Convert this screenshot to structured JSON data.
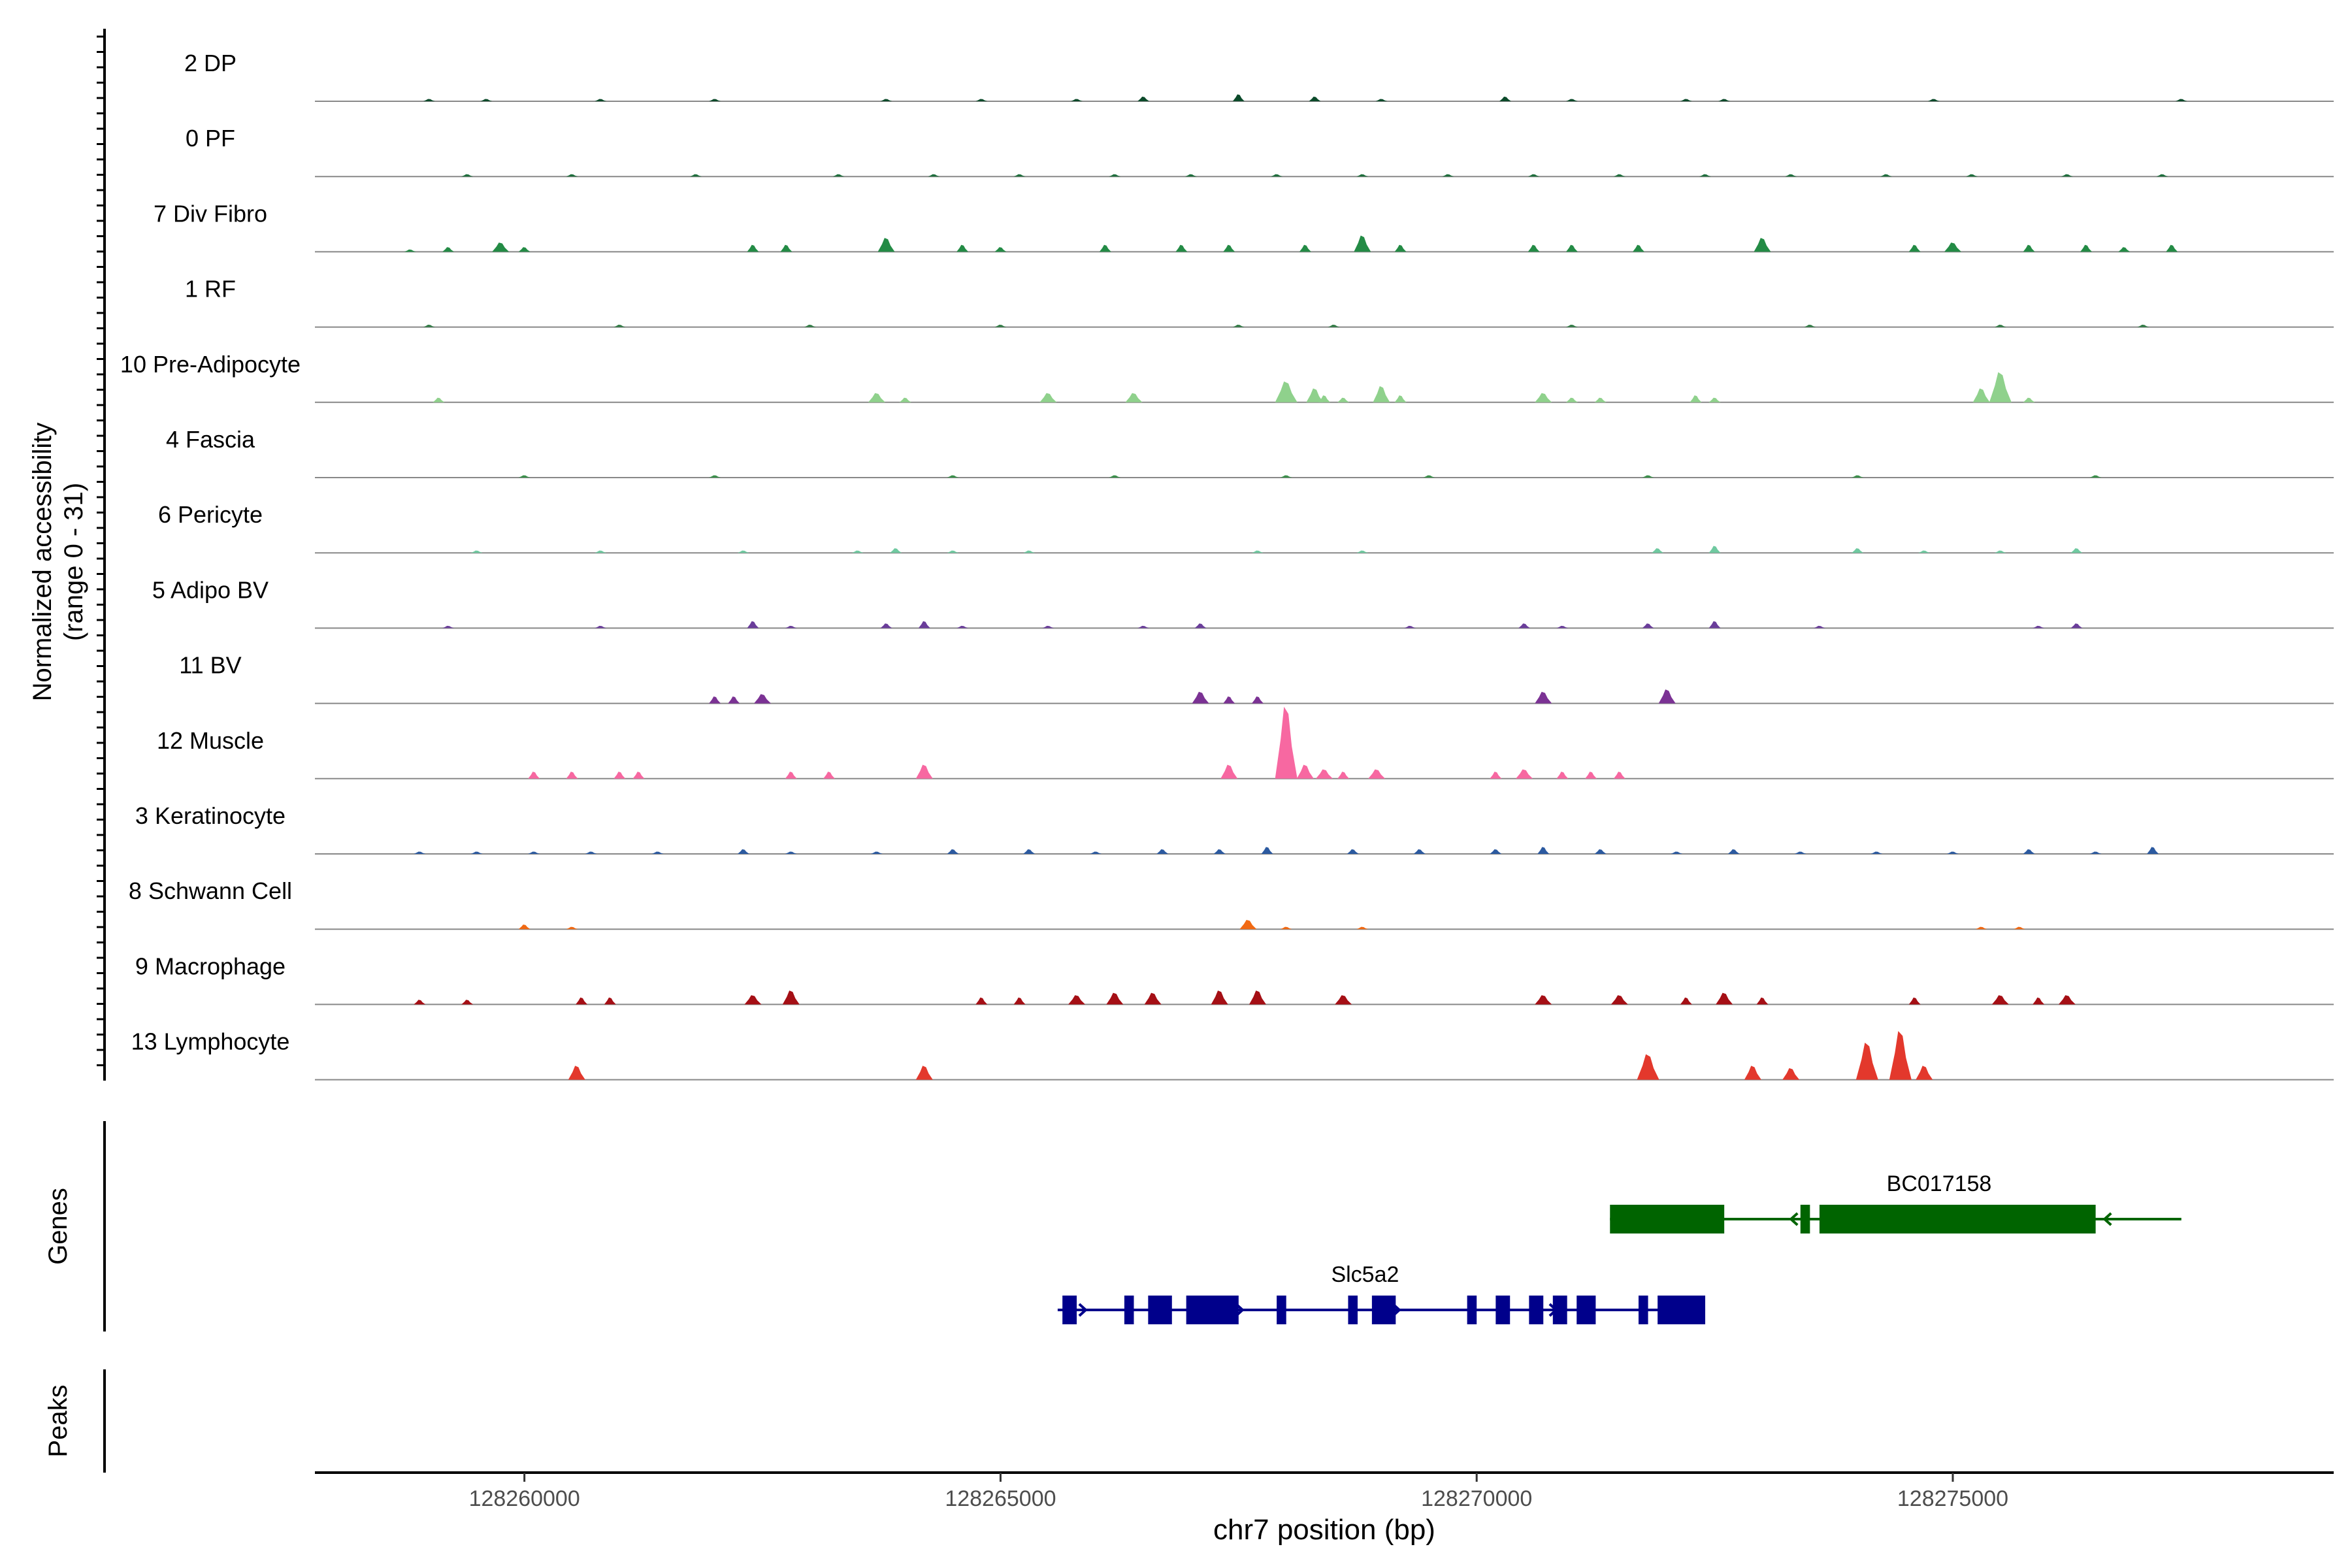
{
  "chart_data": {
    "type": "area",
    "ylabel_line1": "Normalized accessibility",
    "ylabel_line2": "(range 0 - 31)",
    "xlabel": "chr7 position (bp)",
    "xlim": [
      128257800,
      128279000
    ],
    "ylim": [
      0,
      31
    ],
    "x_ticks": [
      128260000,
      128265000,
      128270000,
      128275000
    ],
    "x_tick_labels": [
      "128260000",
      "128265000",
      "128270000",
      "128275000"
    ],
    "panel_labels": {
      "genes": "Genes",
      "peaks": "Peaks"
    },
    "tracks": [
      {
        "name": "2 DP",
        "color": "#0b4a2a",
        "peaks": [
          [
            128259000,
            1
          ],
          [
            128259600,
            1
          ],
          [
            128260800,
            1
          ],
          [
            128262000,
            1
          ],
          [
            128263800,
            1
          ],
          [
            128264800,
            1
          ],
          [
            128265800,
            1
          ],
          [
            128266500,
            2
          ],
          [
            128267500,
            3
          ],
          [
            128268300,
            2
          ],
          [
            128269000,
            1
          ],
          [
            128270300,
            2
          ],
          [
            128271000,
            1
          ],
          [
            128272200,
            1
          ],
          [
            128272600,
            1
          ],
          [
            128274800,
            1
          ],
          [
            128277400,
            1
          ]
        ]
      },
      {
        "name": "0 PF",
        "color": "#1e6e3c",
        "peaks": [
          [
            128259400,
            1
          ],
          [
            128260500,
            1
          ],
          [
            128261800,
            1
          ],
          [
            128263300,
            1
          ],
          [
            128264300,
            1
          ],
          [
            128265200,
            1
          ],
          [
            128266200,
            1
          ],
          [
            128267000,
            1
          ],
          [
            128267900,
            1
          ],
          [
            128268800,
            1
          ],
          [
            128269700,
            1
          ],
          [
            128270600,
            1
          ],
          [
            128271500,
            1
          ],
          [
            128272400,
            1
          ],
          [
            128273300,
            1
          ],
          [
            128274300,
            1
          ],
          [
            128275200,
            1
          ],
          [
            128276200,
            1
          ],
          [
            128277200,
            1
          ]
        ]
      },
      {
        "name": "7 Div Fibro",
        "color": "#238b45",
        "peaks": [
          [
            128258800,
            1
          ],
          [
            128259200,
            2
          ],
          [
            128259750,
            4
          ],
          [
            128260000,
            2
          ],
          [
            128262400,
            3
          ],
          [
            128262750,
            3
          ],
          [
            128263800,
            6
          ],
          [
            128264600,
            3
          ],
          [
            128265000,
            2
          ],
          [
            128266100,
            3
          ],
          [
            128266900,
            3
          ],
          [
            128267400,
            3
          ],
          [
            128268200,
            3
          ],
          [
            128268800,
            7
          ],
          [
            128269200,
            3
          ],
          [
            128270600,
            3
          ],
          [
            128271000,
            3
          ],
          [
            128271700,
            3
          ],
          [
            128273000,
            6
          ],
          [
            128274600,
            3
          ],
          [
            128275000,
            4
          ],
          [
            128275800,
            3
          ],
          [
            128276400,
            3
          ],
          [
            128276800,
            2
          ],
          [
            128277300,
            3
          ]
        ]
      },
      {
        "name": "1 RF",
        "color": "#2f7a43",
        "peaks": [
          [
            128259000,
            1
          ],
          [
            128261000,
            1
          ],
          [
            128263000,
            1
          ],
          [
            128265000,
            1
          ],
          [
            128267500,
            1
          ],
          [
            128268500,
            1
          ],
          [
            128271000,
            1
          ],
          [
            128273500,
            1
          ],
          [
            128275500,
            1
          ],
          [
            128277000,
            1
          ]
        ]
      },
      {
        "name": "10 Pre-Adipocyte",
        "color": "#8fd18c",
        "peaks": [
          [
            128259100,
            2
          ],
          [
            128263700,
            4
          ],
          [
            128264000,
            2
          ],
          [
            128265500,
            4
          ],
          [
            128266400,
            4
          ],
          [
            128268000,
            9
          ],
          [
            128268300,
            6
          ],
          [
            128268400,
            3
          ],
          [
            128268600,
            2
          ],
          [
            128269000,
            7
          ],
          [
            128269200,
            3
          ],
          [
            128270700,
            4
          ],
          [
            128271000,
            2
          ],
          [
            128271300,
            2
          ],
          [
            128272300,
            3
          ],
          [
            128272500,
            2
          ],
          [
            128275500,
            13
          ],
          [
            128275300,
            6
          ],
          [
            128275800,
            2
          ]
        ]
      },
      {
        "name": "4 Fascia",
        "color": "#3a8f4a",
        "peaks": [
          [
            128260000,
            1
          ],
          [
            128262000,
            1
          ],
          [
            128264500,
            1
          ],
          [
            128266200,
            1
          ],
          [
            128268000,
            1
          ],
          [
            128269500,
            1
          ],
          [
            128271800,
            1
          ],
          [
            128274000,
            1
          ],
          [
            128276500,
            1
          ]
        ]
      },
      {
        "name": "6 Pericyte",
        "color": "#6fc9a0",
        "peaks": [
          [
            128259500,
            1
          ],
          [
            128260800,
            1
          ],
          [
            128262300,
            1
          ],
          [
            128263500,
            1
          ],
          [
            128263900,
            2
          ],
          [
            128264500,
            1
          ],
          [
            128265300,
            1
          ],
          [
            128267700,
            1
          ],
          [
            128268800,
            1
          ],
          [
            128271900,
            2
          ],
          [
            128272500,
            3
          ],
          [
            128274000,
            2
          ],
          [
            128274700,
            1
          ],
          [
            128275500,
            1
          ],
          [
            128276300,
            2
          ]
        ]
      },
      {
        "name": "5 Adipo BV",
        "color": "#6a3d9a",
        "peaks": [
          [
            128259200,
            1
          ],
          [
            128260800,
            1
          ],
          [
            128262400,
            3
          ],
          [
            128262800,
            1
          ],
          [
            128263800,
            2
          ],
          [
            128264200,
            3
          ],
          [
            128264600,
            1
          ],
          [
            128265500,
            1
          ],
          [
            128266500,
            1
          ],
          [
            128267100,
            2
          ],
          [
            128269300,
            1
          ],
          [
            128270500,
            2
          ],
          [
            128270900,
            1
          ],
          [
            128271800,
            2
          ],
          [
            128272500,
            3
          ],
          [
            128273600,
            1
          ],
          [
            128275900,
            1
          ],
          [
            128276300,
            2
          ]
        ]
      },
      {
        "name": "11 BV",
        "color": "#7b3294",
        "peaks": [
          [
            128262000,
            3
          ],
          [
            128262200,
            3
          ],
          [
            128262500,
            4
          ],
          [
            128267100,
            5
          ],
          [
            128267400,
            3
          ],
          [
            128267700,
            3
          ],
          [
            128270700,
            5
          ],
          [
            128272000,
            6
          ]
        ]
      },
      {
        "name": "12 Muscle",
        "color": "#f768a1",
        "peaks": [
          [
            128260100,
            3
          ],
          [
            128260500,
            3
          ],
          [
            128261000,
            3
          ],
          [
            128261200,
            3
          ],
          [
            128262800,
            3
          ],
          [
            128263200,
            3
          ],
          [
            128264200,
            6
          ],
          [
            128267400,
            6
          ],
          [
            128268000,
            31
          ],
          [
            128268200,
            6
          ],
          [
            128268400,
            4
          ],
          [
            128268600,
            3
          ],
          [
            128268950,
            4
          ],
          [
            128270200,
            3
          ],
          [
            128270500,
            4
          ],
          [
            128270900,
            3
          ],
          [
            128271200,
            3
          ],
          [
            128271500,
            3
          ]
        ]
      },
      {
        "name": "3 Keratinocyte",
        "color": "#2c5aa0",
        "peaks": [
          [
            128258900,
            1
          ],
          [
            128259500,
            1
          ],
          [
            128260100,
            1
          ],
          [
            128260700,
            1
          ],
          [
            128261400,
            1
          ],
          [
            128262300,
            2
          ],
          [
            128262800,
            1
          ],
          [
            128263700,
            1
          ],
          [
            128264500,
            2
          ],
          [
            128265300,
            2
          ],
          [
            128266000,
            1
          ],
          [
            128266700,
            2
          ],
          [
            128267300,
            2
          ],
          [
            128267800,
            3
          ],
          [
            128268700,
            2
          ],
          [
            128269400,
            2
          ],
          [
            128270200,
            2
          ],
          [
            128270700,
            3
          ],
          [
            128271300,
            2
          ],
          [
            128272100,
            1
          ],
          [
            128272700,
            2
          ],
          [
            128273400,
            1
          ],
          [
            128274200,
            1
          ],
          [
            128275000,
            1
          ],
          [
            128275800,
            2
          ],
          [
            128276500,
            1
          ],
          [
            128277100,
            3
          ]
        ]
      },
      {
        "name": "8 Schwann Cell",
        "color": "#f16913",
        "peaks": [
          [
            128260000,
            2
          ],
          [
            128260500,
            1
          ],
          [
            128267600,
            4
          ],
          [
            128268000,
            1
          ],
          [
            128268800,
            1
          ],
          [
            128275300,
            1
          ],
          [
            128275700,
            1
          ]
        ]
      },
      {
        "name": "9 Macrophage",
        "color": "#a50f15",
        "peaks": [
          [
            128258900,
            2
          ],
          [
            128259400,
            2
          ],
          [
            128260600,
            3
          ],
          [
            128260900,
            3
          ],
          [
            128262400,
            4
          ],
          [
            128262800,
            6
          ],
          [
            128264800,
            3
          ],
          [
            128265200,
            3
          ],
          [
            128265800,
            4
          ],
          [
            128266200,
            5
          ],
          [
            128266600,
            5
          ],
          [
            128267300,
            6
          ],
          [
            128267700,
            6
          ],
          [
            128268600,
            4
          ],
          [
            128270700,
            4
          ],
          [
            128271500,
            4
          ],
          [
            128272200,
            3
          ],
          [
            128272600,
            5
          ],
          [
            128273000,
            3
          ],
          [
            128274600,
            3
          ],
          [
            128275500,
            4
          ],
          [
            128275900,
            3
          ],
          [
            128276200,
            4
          ]
        ]
      },
      {
        "name": "13 Lymphocyte",
        "color": "#e3382c",
        "peaks": [
          [
            128260550,
            6
          ],
          [
            128264200,
            6
          ],
          [
            128271800,
            11
          ],
          [
            128272900,
            6
          ],
          [
            128273300,
            5
          ],
          [
            128274100,
            16
          ],
          [
            128274450,
            21
          ],
          [
            128274700,
            6
          ]
        ]
      }
    ],
    "genes": [
      {
        "name": "BC017158",
        "color": "#006400",
        "strand": "-",
        "start": 128271400,
        "end": 128277400,
        "exons": [
          [
            128271400,
            128272600
          ],
          [
            128273400,
            128273500
          ],
          [
            128273600,
            128276500
          ]
        ]
      },
      {
        "name": "Slc5a2",
        "color": "#00008b",
        "strand": "+",
        "start": 128265600,
        "end": 128272400,
        "exons": [
          [
            128265650,
            128265800
          ],
          [
            128266300,
            128266400
          ],
          [
            128266550,
            128266800
          ],
          [
            128266950,
            128267500
          ],
          [
            128267900,
            128268000
          ],
          [
            128268650,
            128268750
          ],
          [
            128268900,
            128269150
          ],
          [
            128269900,
            128270000
          ],
          [
            128270200,
            128270350
          ],
          [
            128270550,
            128270700
          ],
          [
            128270800,
            128270950
          ],
          [
            128271050,
            128271250
          ],
          [
            128271700,
            128271800
          ],
          [
            128271900,
            128272400
          ]
        ]
      }
    ],
    "peak_regions": []
  }
}
